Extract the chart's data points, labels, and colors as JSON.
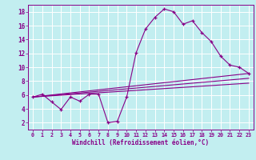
{
  "xlabel": "Windchill (Refroidissement éolien,°C)",
  "xlim": [
    -0.5,
    23.5
  ],
  "ylim": [
    1,
    19
  ],
  "xticks": [
    0,
    1,
    2,
    3,
    4,
    5,
    6,
    7,
    8,
    9,
    10,
    11,
    12,
    13,
    14,
    15,
    16,
    17,
    18,
    19,
    20,
    21,
    22,
    23
  ],
  "yticks": [
    2,
    4,
    6,
    8,
    10,
    12,
    14,
    16,
    18
  ],
  "bg_color": "#c2eef0",
  "grid_color": "#b0dde0",
  "line_color": "#880088",
  "line1_x": [
    0,
    1,
    2,
    3,
    4,
    5,
    6,
    7,
    8,
    9,
    10,
    11,
    12,
    13,
    14,
    15,
    16,
    17,
    18,
    19,
    20,
    21,
    22,
    23
  ],
  "line1_y": [
    5.7,
    6.1,
    5.0,
    3.9,
    5.7,
    5.1,
    6.1,
    6.1,
    2.0,
    2.2,
    5.7,
    12.1,
    15.5,
    17.2,
    18.4,
    18.0,
    16.2,
    16.7,
    15.0,
    13.7,
    11.6,
    10.3,
    10.0,
    9.1
  ],
  "line2_x": [
    0,
    23
  ],
  "line2_y": [
    5.7,
    9.1
  ],
  "line3_x": [
    0,
    23
  ],
  "line3_y": [
    5.7,
    8.4
  ],
  "line4_x": [
    0,
    23
  ],
  "line4_y": [
    5.7,
    7.7
  ]
}
